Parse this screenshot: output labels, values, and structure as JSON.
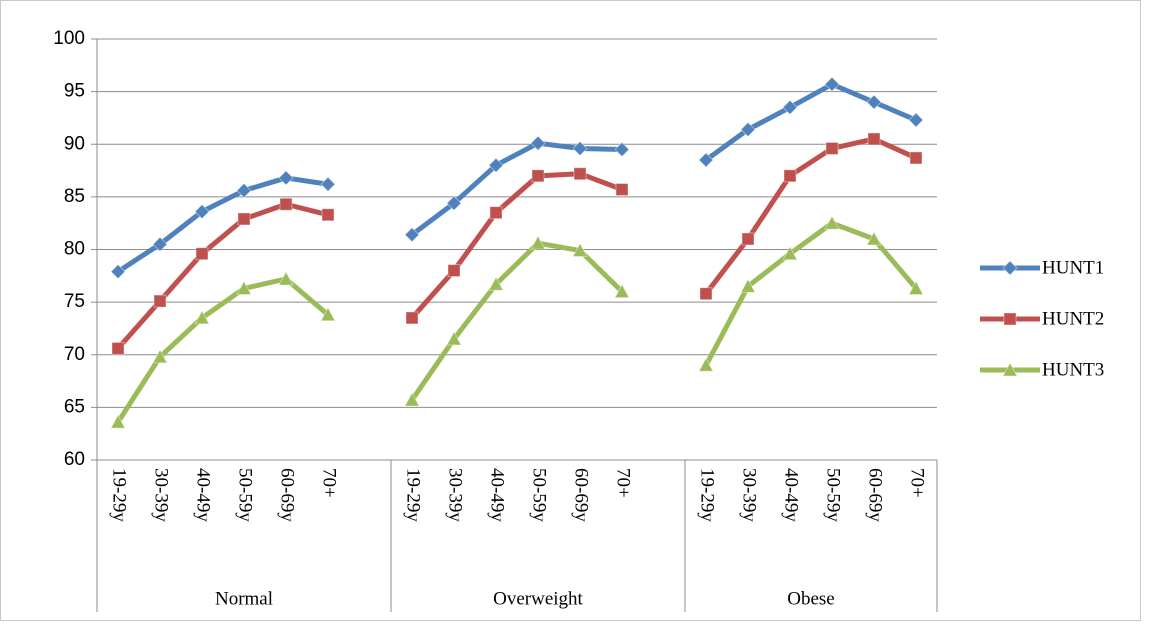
{
  "chart_data": {
    "type": "line",
    "categories": [
      "19-29y",
      "30-39y",
      "40-49y",
      "50-59y",
      "60-69y",
      "70+",
      null,
      "19-29y",
      "30-39y",
      "40-49y",
      "50-59y",
      "60-69y",
      "70+",
      null,
      "19-29y",
      "30-39y",
      "40-49y",
      "50-59y",
      "60-69y",
      "70+"
    ],
    "groups": [
      "Normal",
      "Overweight",
      "Obese"
    ],
    "series": [
      {
        "name": "HUNT1",
        "color": "#4f81bd",
        "marker": "diamond",
        "values": [
          77.9,
          80.5,
          83.6,
          85.6,
          86.8,
          86.2,
          null,
          81.4,
          84.4,
          88.0,
          90.1,
          89.6,
          89.5,
          null,
          88.5,
          91.4,
          93.5,
          95.7,
          94.0,
          92.3
        ]
      },
      {
        "name": "HUNT2",
        "color": "#c0504d",
        "marker": "square",
        "values": [
          70.6,
          75.1,
          79.6,
          82.9,
          84.3,
          83.3,
          null,
          73.5,
          78.0,
          83.5,
          87.0,
          87.2,
          85.7,
          null,
          75.8,
          81.0,
          87.0,
          89.6,
          90.5,
          88.7
        ]
      },
      {
        "name": "HUNT3",
        "color": "#9bbb59",
        "marker": "triangle",
        "values": [
          63.6,
          69.8,
          73.5,
          76.3,
          77.2,
          73.8,
          null,
          65.7,
          71.5,
          76.7,
          80.6,
          79.9,
          76.0,
          null,
          69.0,
          76.5,
          79.6,
          82.5,
          81.0,
          76.3
        ]
      }
    ],
    "ylim": [
      60,
      100
    ],
    "yticks": [
      60,
      65,
      70,
      75,
      80,
      85,
      90,
      95,
      100
    ],
    "grid": true,
    "legend": "right"
  }
}
